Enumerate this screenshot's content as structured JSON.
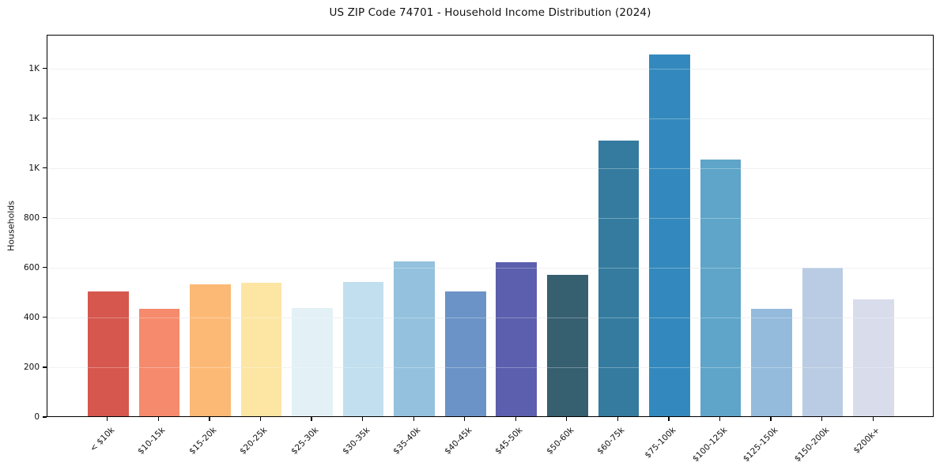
{
  "title": "US ZIP Code 74701 - Household Income Distribution (2024)",
  "chart_data": {
    "type": "bar",
    "title": "US ZIP Code 74701 - Household Income Distribution (2024)",
    "xlabel": "",
    "ylabel": "Households",
    "categories": [
      "< $10k",
      "$10-15k",
      "$15-20k",
      "$20-25k",
      "$25-30k",
      "$30-35k",
      "$35-40k",
      "$40-45k",
      "$45-50k",
      "$50-60k",
      "$60-75k",
      "$75-100k",
      "$100-125k",
      "$125-150k",
      "$150-200k",
      "$200k+"
    ],
    "values": [
      500,
      430,
      529,
      535,
      436,
      538,
      622,
      500,
      619,
      569,
      1106,
      1453,
      1030,
      430,
      596,
      470
    ],
    "bar_colors": [
      "#d5574e",
      "#f58a6c",
      "#fcb976",
      "#fde5a4",
      "#e3f1f7",
      "#c1dfee",
      "#93c1de",
      "#6b93c7",
      "#5b5fad",
      "#365f70",
      "#347b9f",
      "#3389bd",
      "#5ea5c9",
      "#94badc",
      "#b9cce3",
      "#d8dceb"
    ],
    "ylim": [
      0,
      1535
    ],
    "yticks": [
      {
        "value": 0,
        "label": "0"
      },
      {
        "value": 200,
        "label": "200"
      },
      {
        "value": 400,
        "label": "400"
      },
      {
        "value": 600,
        "label": "600"
      },
      {
        "value": 800,
        "label": "800"
      },
      {
        "value": 1000,
        "label": "1K"
      },
      {
        "value": 1200,
        "label": "1K"
      },
      {
        "value": 1400,
        "label": "1K"
      }
    ],
    "grid": "horizontal",
    "legend": "none",
    "background_color": "#ffffff",
    "spine_color": "#000000",
    "grid_color": "#ebebeb",
    "text_color": "#111111"
  }
}
